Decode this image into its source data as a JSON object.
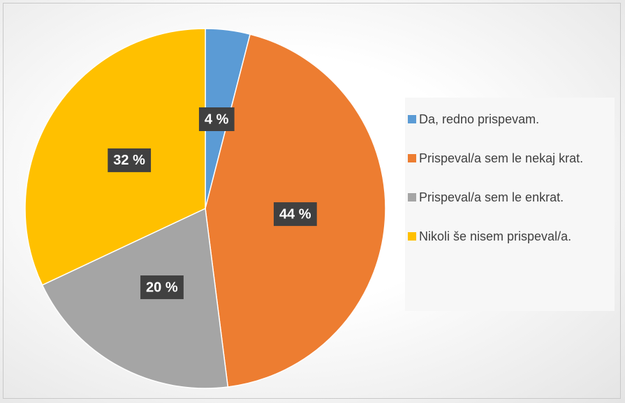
{
  "chart_data": {
    "type": "pie",
    "categories": [
      "Da, redno prispevam.",
      "Prispeval/a sem le nekaj krat.",
      "Prispeval/a sem le enkrat.",
      "Nikoli še nisem prispeval/a."
    ],
    "values": [
      4,
      44,
      20,
      32
    ],
    "value_labels": [
      "4 %",
      "44 %",
      "20 %",
      "32 %"
    ],
    "colors": [
      "#5b9bd5",
      "#ed7d31",
      "#a5a5a5",
      "#ffc000"
    ],
    "legend": "right"
  }
}
